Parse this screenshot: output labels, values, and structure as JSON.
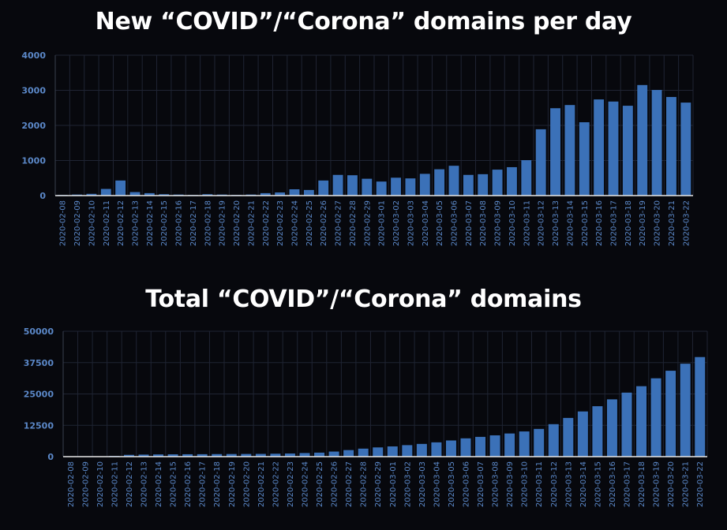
{
  "colors": {
    "bar": "#3b71b8",
    "grid": "#1f2433",
    "axis": "#e8e8e8",
    "tick": "#5b88c8",
    "background": "#07080d"
  },
  "chart_data": [
    {
      "type": "bar",
      "title": "New “COVID”/“Corona” domains per day",
      "ylim": [
        0,
        4000
      ],
      "yticks": [
        "0",
        "1000",
        "2000",
        "3000",
        "4000"
      ],
      "grid": true,
      "categories": [
        "2020-02-08",
        "2020-02-09",
        "2020-02-10",
        "2020-02-11",
        "2020-02-12",
        "2020-02-13",
        "2020-02-14",
        "2020-02-15",
        "2020-02-16",
        "2020-02-17",
        "2020-02-18",
        "2020-02-19",
        "2020-02-20",
        "2020-02-21",
        "2020-02-22",
        "2020-02-23",
        "2020-02-24",
        "2020-02-25",
        "2020-02-26",
        "2020-02-27",
        "2020-02-28",
        "2020-02-29",
        "2020-03-01",
        "2020-03-02",
        "2020-03-03",
        "2020-03-04",
        "2020-03-05",
        "2020-03-06",
        "2020-03-07",
        "2020-03-08",
        "2020-03-09",
        "2020-03-10",
        "2020-03-11",
        "2020-03-12",
        "2020-03-13",
        "2020-03-14",
        "2020-03-15",
        "2020-03-16",
        "2020-03-17",
        "2020-03-18",
        "2020-03-19",
        "2020-03-20",
        "2020-03-21",
        "2020-03-22"
      ],
      "values": [
        20,
        30,
        50,
        190,
        430,
        100,
        70,
        40,
        30,
        20,
        40,
        30,
        20,
        30,
        70,
        90,
        180,
        160,
        430,
        590,
        580,
        480,
        400,
        510,
        490,
        620,
        750,
        850,
        590,
        610,
        740,
        810,
        1010,
        1890,
        2490,
        2580,
        2090,
        2740,
        2680,
        2560,
        3150,
        3010,
        2810,
        2650
      ]
    },
    {
      "type": "bar",
      "title": "Total “COVID”/“Corona” domains",
      "ylim": [
        0,
        50000
      ],
      "yticks": [
        "0",
        "12500",
        "25000",
        "37500",
        "50000"
      ],
      "grid": true,
      "categories": [
        "2020-02-08",
        "2020-02-09",
        "2020-02-10",
        "2020-02-11",
        "2020-02-12",
        "2020-02-13",
        "2020-02-14",
        "2020-02-15",
        "2020-02-16",
        "2020-02-17",
        "2020-02-18",
        "2020-02-19",
        "2020-02-20",
        "2020-02-21",
        "2020-02-22",
        "2020-02-23",
        "2020-02-24",
        "2020-02-25",
        "2020-02-26",
        "2020-02-27",
        "2020-02-28",
        "2020-02-29",
        "2020-03-01",
        "2020-03-02",
        "2020-03-03",
        "2020-03-04",
        "2020-03-05",
        "2020-03-06",
        "2020-03-07",
        "2020-03-08",
        "2020-03-09",
        "2020-03-10",
        "2020-03-11",
        "2020-03-12",
        "2020-03-13",
        "2020-03-14",
        "2020-03-15",
        "2020-03-16",
        "2020-03-17",
        "2020-03-18",
        "2020-03-19",
        "2020-03-20",
        "2020-03-21",
        "2020-03-22"
      ],
      "values": [
        20,
        50,
        100,
        290,
        720,
        820,
        890,
        930,
        960,
        980,
        1020,
        1050,
        1070,
        1100,
        1170,
        1260,
        1440,
        1600,
        2030,
        2620,
        3200,
        3680,
        4080,
        4590,
        5080,
        5700,
        6450,
        7300,
        7890,
        8500,
        9240,
        10050,
        11060,
        12950,
        15440,
        18020,
        20110,
        22850,
        25530,
        28090,
        31240,
        34250,
        37060,
        39710
      ]
    }
  ]
}
